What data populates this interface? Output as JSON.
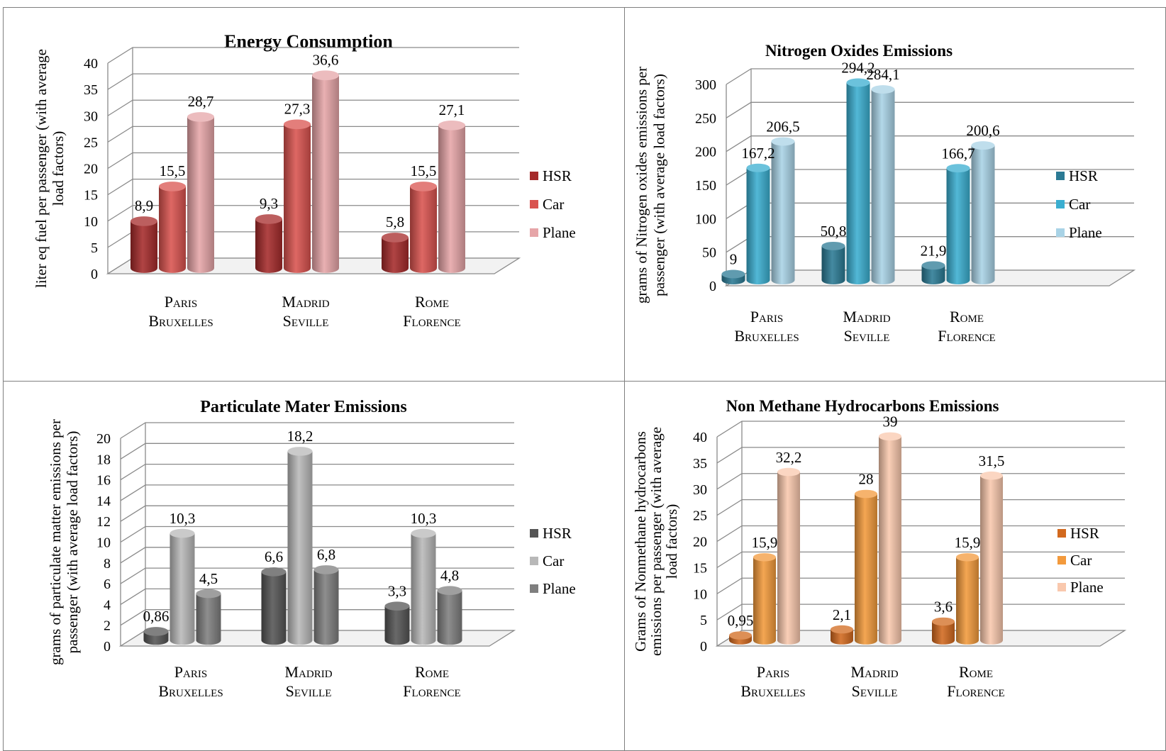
{
  "chart_data": [
    {
      "type": "bar",
      "title": "Energy Consumption",
      "categories": [
        "Paris Bruxelles",
        "Madrid Seville",
        "Rome Florence"
      ],
      "category_lines": [
        [
          "Paris",
          "Bruxelles"
        ],
        [
          "Madrid",
          "Seville"
        ],
        [
          "Rome",
          "Florence"
        ]
      ],
      "ylabel_lines": [
        "liter eq fuel per passenger (with average",
        "load factors)"
      ],
      "ylim": [
        0,
        40
      ],
      "yticks": [
        0,
        5,
        10,
        15,
        20,
        25,
        30,
        35,
        40
      ],
      "series": [
        {
          "name": "HSR",
          "values": [
            8.9,
            9.3,
            5.8
          ],
          "labels": [
            "8,9",
            "9,3",
            "5,8"
          ],
          "color": "#a52a2a"
        },
        {
          "name": "Car",
          "values": [
            15.5,
            27.3,
            15.5
          ],
          "labels": [
            "15,5",
            "27,3",
            "15,5"
          ],
          "color": "#d9534f"
        },
        {
          "name": "Plane",
          "values": [
            28.7,
            36.6,
            27.1
          ],
          "labels": [
            "28,7",
            "36,6",
            "27,1"
          ],
          "color": "#e6a5a8"
        }
      ],
      "grid": true,
      "legend_position": "right"
    },
    {
      "type": "bar",
      "title": "Nitrogen Oxides Emissions",
      "categories": [
        "Paris Bruxelles",
        "Madrid Seville",
        "Rome Florence"
      ],
      "category_lines": [
        [
          "Paris",
          "Bruxelles"
        ],
        [
          "Madrid",
          "Seville"
        ],
        [
          "Rome",
          "Florence"
        ]
      ],
      "ylabel_lines": [
        "grams of Nitrogen oxides emissions per",
        "passenger (with average load factors)"
      ],
      "ylim": [
        0,
        300
      ],
      "yticks": [
        0,
        50,
        100,
        150,
        200,
        250,
        300
      ],
      "series": [
        {
          "name": "HSR",
          "values": [
            9,
            50.8,
            21.9
          ],
          "labels": [
            "9",
            "50,8",
            "21,9"
          ],
          "color": "#2b7a94"
        },
        {
          "name": "Car",
          "values": [
            167.2,
            294.2,
            166.7
          ],
          "labels": [
            "167,2",
            "294,2",
            "166,7"
          ],
          "color": "#3aaed0"
        },
        {
          "name": "Plane",
          "values": [
            206.5,
            284.1,
            200.6
          ],
          "labels": [
            "206,5",
            "284,1",
            "200,6"
          ],
          "color": "#a9d3e6"
        }
      ],
      "grid": true,
      "legend_position": "right"
    },
    {
      "type": "bar",
      "title": "Particulate Mater Emissions",
      "categories": [
        "Paris Bruxelles",
        "Madrid Seville",
        "Rome Florence"
      ],
      "category_lines": [
        [
          "Paris",
          "Bruxelles"
        ],
        [
          "Madrid",
          "Seville"
        ],
        [
          "Rome",
          "Florence"
        ]
      ],
      "ylabel_lines": [
        "grams of particulate matter emissions per",
        "passenger (with average load factors)"
      ],
      "ylim": [
        0,
        20
      ],
      "yticks": [
        0,
        2,
        4,
        6,
        8,
        10,
        12,
        14,
        16,
        18,
        20
      ],
      "series": [
        {
          "name": "HSR",
          "values": [
            0.86,
            6.6,
            3.3
          ],
          "labels": [
            "0,86",
            "6,6",
            "3,3"
          ],
          "color": "#555555"
        },
        {
          "name": "Car",
          "values": [
            10.3,
            18.2,
            10.3
          ],
          "labels": [
            "10,3",
            "18,2",
            "10,3"
          ],
          "color": "#b8b8b8"
        },
        {
          "name": "Plane",
          "values": [
            4.5,
            6.8,
            4.8
          ],
          "labels": [
            "4,5",
            "6,8",
            "4,8"
          ],
          "color": "#7f7f7f"
        }
      ],
      "grid": true,
      "legend_position": "right"
    },
    {
      "type": "bar",
      "title": "Non Methane Hydrocarbons Emissions",
      "categories": [
        "Paris Bruxelles",
        "Madrid Seville",
        "Rome Florence"
      ],
      "category_lines": [
        [
          "Paris",
          "Bruxelles"
        ],
        [
          "Madrid",
          "Seville"
        ],
        [
          "Rome",
          "Florence"
        ]
      ],
      "ylabel_lines": [
        "Grams of Nonmethane hydrocarbons",
        "emissions per passenger (with average",
        "load factors)"
      ],
      "ylim": [
        0,
        40
      ],
      "yticks": [
        0,
        5,
        10,
        15,
        20,
        25,
        30,
        35,
        40
      ],
      "series": [
        {
          "name": "HSR",
          "values": [
            0.95,
            2.1,
            3.6
          ],
          "labels": [
            "0,95",
            "2,1",
            "3,6"
          ],
          "color": "#d2691e"
        },
        {
          "name": "Car",
          "values": [
            15.9,
            28,
            15.9
          ],
          "labels": [
            "15,9",
            "28",
            "15,9"
          ],
          "color": "#f39a3c"
        },
        {
          "name": "Plane",
          "values": [
            32.2,
            39,
            31.5
          ],
          "labels": [
            "32,2",
            "39",
            "31,5"
          ],
          "color": "#f9c8ad"
        }
      ],
      "grid": true,
      "legend_position": "right"
    }
  ]
}
